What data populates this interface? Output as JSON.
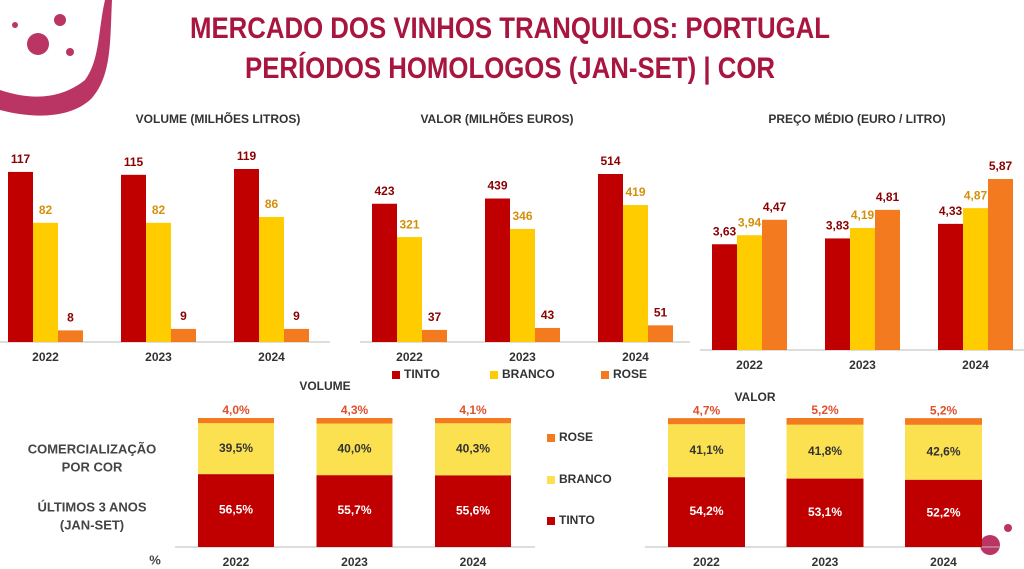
{
  "title_lines": [
    "MERCADO DOS VINHOS TRANQUILOS: PORTUGAL",
    "PERÍODOS HOMOLOGOS (JAN-SET) | COR"
  ],
  "side_labels": [
    "COMERCIALIZAÇÃO",
    "POR COR",
    "ÚLTIMOS 3 ANOS",
    "(JAN-SET)",
    "%"
  ],
  "chart_data": [
    {
      "type": "bar",
      "title": "VOLUME (MILHÕES LITROS)",
      "categories": [
        "2022",
        "2023",
        "2024"
      ],
      "series": [
        {
          "color": "#c00000",
          "values": [
            117,
            115,
            119
          ]
        },
        {
          "color": "#ffcc00",
          "values": [
            82,
            82,
            86
          ]
        },
        {
          "color": "#f47a20",
          "values": [
            8,
            9,
            9
          ]
        }
      ]
    },
    {
      "type": "bar",
      "title": "VALOR (MILHÕES EUROS)",
      "categories": [
        "2022",
        "2023",
        "2024"
      ],
      "series": [
        {
          "name": "TINTO",
          "color": "#c00000",
          "values": [
            423,
            439,
            514
          ]
        },
        {
          "name": "BRANCO",
          "color": "#ffcc00",
          "values": [
            321,
            346,
            419
          ]
        },
        {
          "name": "ROSE",
          "color": "#f47a20",
          "values": [
            37,
            43,
            51
          ]
        }
      ]
    },
    {
      "type": "bar",
      "title": "PREÇO MÉDIO (EURO / LITRO)",
      "categories": [
        "2022",
        "2023",
        "2024"
      ],
      "series": [
        {
          "color": "#c00000",
          "values": [
            3.63,
            3.83,
            4.33
          ],
          "value_labels": [
            "3,63",
            "3,83",
            "4,33"
          ]
        },
        {
          "color": "#ffcc00",
          "values": [
            3.94,
            4.19,
            4.87
          ],
          "value_labels": [
            "3,94",
            "4,19",
            "4,87"
          ]
        },
        {
          "color": "#f47a20",
          "values": [
            4.47,
            4.81,
            5.87
          ],
          "value_labels": [
            "4,47",
            "4,81",
            "5,87"
          ]
        }
      ]
    },
    {
      "type": "stacked_bar",
      "title": "VOLUME",
      "categories": [
        "2022",
        "2023",
        "2024"
      ],
      "series": [
        {
          "name": "TINTO",
          "color": "#c00000",
          "values": [
            56.5,
            55.7,
            55.6
          ],
          "value_labels": [
            "56,5%",
            "55,7%",
            "55,6%"
          ]
        },
        {
          "name": "BRANCO",
          "color": "#fbe04f",
          "values": [
            39.5,
            40.0,
            40.3
          ],
          "value_labels": [
            "39,5%",
            "40,0%",
            "40,3%"
          ]
        },
        {
          "name": "ROSE",
          "color": "#f47a20",
          "values": [
            4.0,
            4.3,
            4.1
          ],
          "value_labels": [
            "4,0%",
            "4,3%",
            "4,1%"
          ]
        }
      ]
    },
    {
      "type": "stacked_bar",
      "title": "VALOR",
      "categories": [
        "2022",
        "2023",
        "2024"
      ],
      "series": [
        {
          "color": "#c00000",
          "values": [
            54.2,
            53.1,
            52.2
          ],
          "value_labels": [
            "54,2%",
            "53,1%",
            "52,2%"
          ]
        },
        {
          "color": "#fbe04f",
          "values": [
            41.1,
            41.8,
            42.6
          ],
          "value_labels": [
            "41,1%",
            "41,8%",
            "42,6%"
          ]
        },
        {
          "color": "#f47a20",
          "values": [
            4.7,
            5.2,
            5.2
          ],
          "value_labels": [
            "4,7%",
            "5,2%",
            "5,2%"
          ]
        }
      ]
    }
  ]
}
